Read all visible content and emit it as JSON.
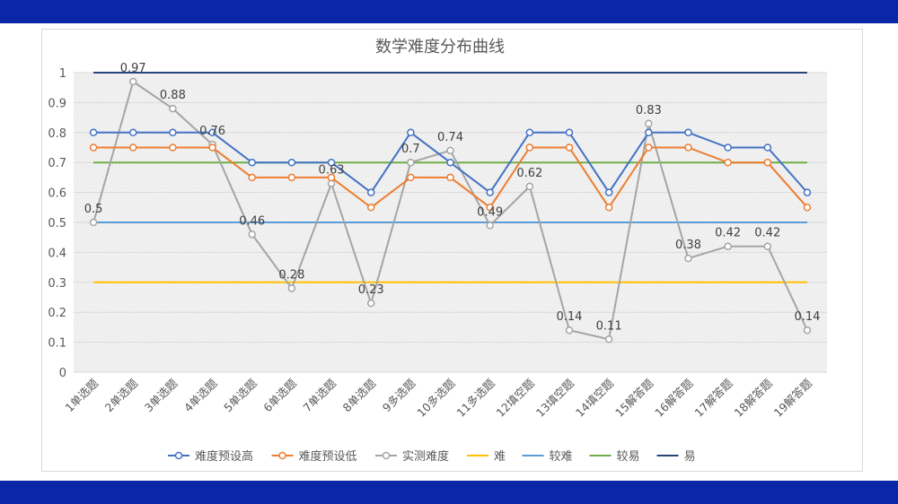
{
  "chart_data": {
    "type": "line",
    "title": "数学难度分布曲线",
    "categories": [
      "1单选题",
      "2单选题",
      "3单选题",
      "4单选题",
      "5单选题",
      "6单选题",
      "7单选题",
      "8单选题",
      "9多选题",
      "10多选题",
      "11多选题",
      "12填空题",
      "13填空题",
      "14填空题",
      "15解答题",
      "16解答题",
      "17解答题",
      "18解答题",
      "19解答题"
    ],
    "ylim": [
      0,
      1
    ],
    "yticks": [
      "0",
      "0.1",
      "0.2",
      "0.3",
      "0.4",
      "0.5",
      "0.6",
      "0.7",
      "0.8",
      "0.9",
      "1"
    ],
    "grid": true,
    "legend_position": "bottom",
    "series": [
      {
        "name": "难度预设高",
        "color": "#4472c4",
        "marker": true,
        "values": [
          0.8,
          0.8,
          0.8,
          0.8,
          0.7,
          0.7,
          0.7,
          0.6,
          0.8,
          0.7,
          0.6,
          0.8,
          0.8,
          0.6,
          0.8,
          0.8,
          0.75,
          0.75,
          0.6
        ]
      },
      {
        "name": "难度预设低",
        "color": "#ed7d31",
        "marker": true,
        "values": [
          0.75,
          0.75,
          0.75,
          0.75,
          0.65,
          0.65,
          0.65,
          0.55,
          0.65,
          0.65,
          0.55,
          0.75,
          0.75,
          0.55,
          0.75,
          0.75,
          0.7,
          0.7,
          0.55
        ]
      },
      {
        "name": "实测难度",
        "color": "#a5a5a5",
        "marker": true,
        "labels": true,
        "values": [
          0.5,
          0.97,
          0.88,
          0.76,
          0.46,
          0.28,
          0.63,
          0.23,
          0.7,
          0.74,
          0.49,
          0.62,
          0.14,
          0.11,
          0.83,
          0.38,
          0.42,
          0.42,
          0.14
        ]
      },
      {
        "name": "难",
        "color": "#ffc000",
        "marker": false,
        "values": [
          0.3,
          0.3,
          0.3,
          0.3,
          0.3,
          0.3,
          0.3,
          0.3,
          0.3,
          0.3,
          0.3,
          0.3,
          0.3,
          0.3,
          0.3,
          0.3,
          0.3,
          0.3,
          0.3
        ]
      },
      {
        "name": "较难",
        "color": "#5b9bd5",
        "marker": false,
        "values": [
          0.5,
          0.5,
          0.5,
          0.5,
          0.5,
          0.5,
          0.5,
          0.5,
          0.5,
          0.5,
          0.5,
          0.5,
          0.5,
          0.5,
          0.5,
          0.5,
          0.5,
          0.5,
          0.5
        ]
      },
      {
        "name": "较易",
        "color": "#70ad47",
        "marker": false,
        "values": [
          0.7,
          0.7,
          0.7,
          0.7,
          0.7,
          0.7,
          0.7,
          0.7,
          0.7,
          0.7,
          0.7,
          0.7,
          0.7,
          0.7,
          0.7,
          0.7,
          0.7,
          0.7,
          0.7
        ]
      },
      {
        "name": "易",
        "color": "#264478",
        "marker": false,
        "values": [
          1,
          1,
          1,
          1,
          1,
          1,
          1,
          1,
          1,
          1,
          1,
          1,
          1,
          1,
          1,
          1,
          1,
          1,
          1
        ]
      }
    ]
  },
  "colors": {
    "band": "#0b26a8",
    "plot_bg": "#f2f2f2",
    "gridline": "#d9d9d9"
  }
}
